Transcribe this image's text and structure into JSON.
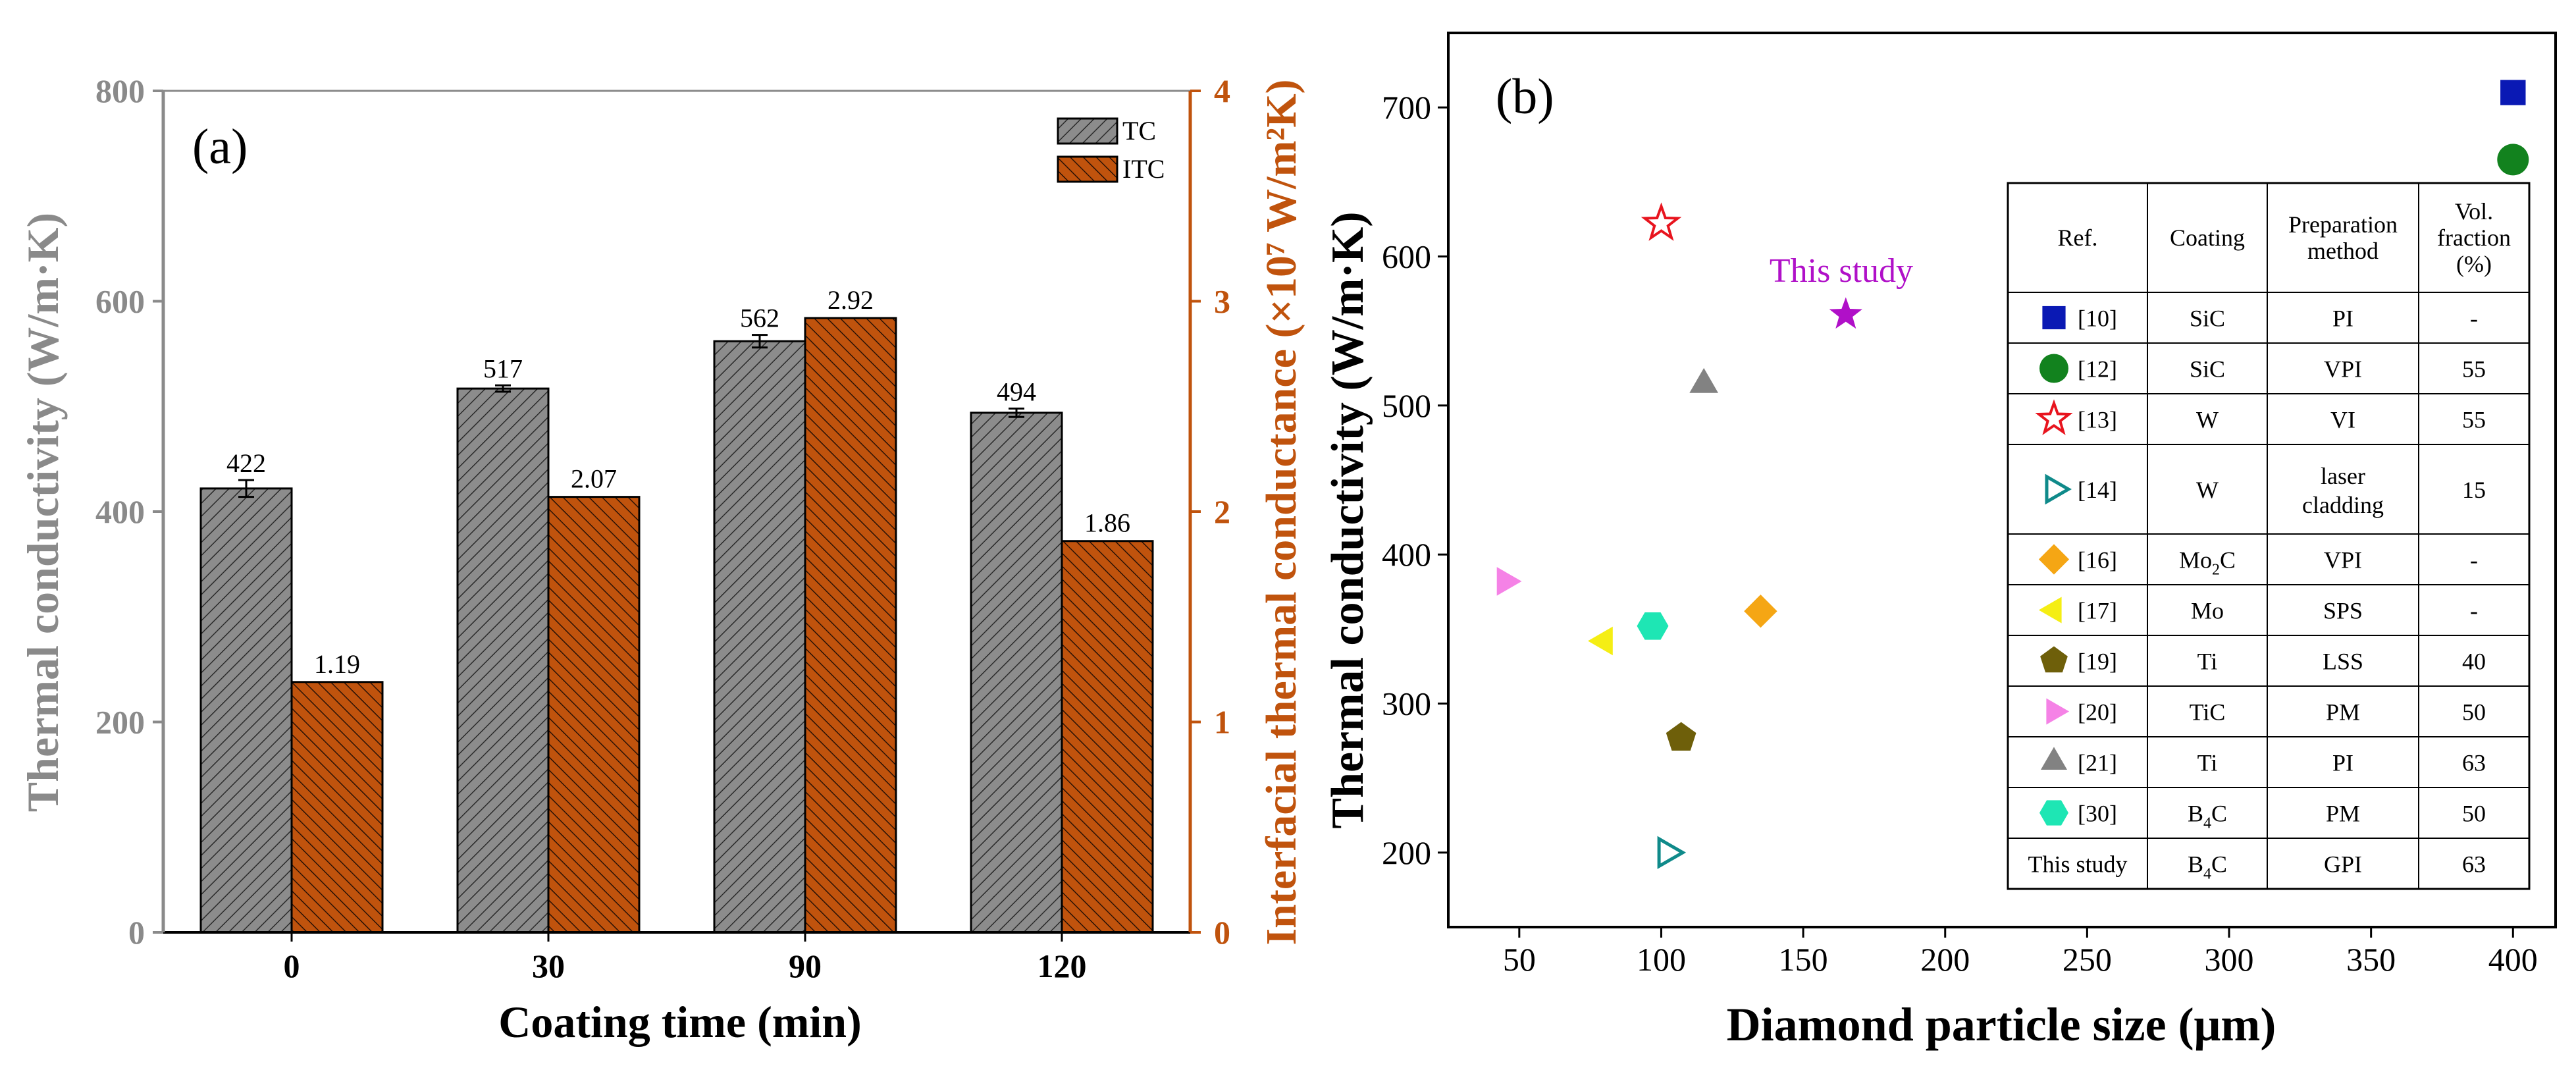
{
  "colors": {
    "tc_bar": "#8c8c8c",
    "itc_bar": "#c0530d",
    "left_axis": "#8a8a8a",
    "right_axis": "#c0530d",
    "this_study": "#b010c8"
  },
  "chart_data": [
    {
      "type": "bar",
      "panel_label": "(a)",
      "categories": [
        "0",
        "30",
        "90",
        "120"
      ],
      "xlabel": "Coating time (min)",
      "ylabel": "Thermal conductivity (W/m·K)",
      "y2label": "Interfacial thermal conductance (×10⁷ W/m²K)",
      "ylim": [
        0,
        800
      ],
      "y2lim": [
        0,
        4
      ],
      "yticks": [
        "0",
        "200",
        "400",
        "600",
        "800"
      ],
      "y2ticks": [
        "0",
        "1",
        "2",
        "3",
        "4"
      ],
      "legend_position": "top-right",
      "series": [
        {
          "name": "TC",
          "axis": "left",
          "values": [
            422,
            517,
            562,
            494
          ],
          "errors": [
            8,
            3,
            6,
            4
          ],
          "labels": [
            "422",
            "517",
            "562",
            "494"
          ]
        },
        {
          "name": "ITC",
          "axis": "right",
          "values": [
            1.19,
            2.07,
            2.92,
            1.86
          ],
          "labels": [
            "1.19",
            "2.07",
            "2.92",
            "1.86"
          ]
        }
      ]
    },
    {
      "type": "scatter",
      "panel_label": "(b)",
      "xlabel": "Diamond particle size (μm)",
      "ylabel": "Thermal conductivity (W/m·K)",
      "xlim": [
        25,
        415
      ],
      "ylim": [
        150,
        750
      ],
      "xticks": [
        "50",
        "100",
        "150",
        "200",
        "250",
        "300",
        "350",
        "400"
      ],
      "yticks": [
        "200",
        "300",
        "400",
        "500",
        "600",
        "700"
      ],
      "annotation": "This study",
      "points": [
        {
          "ref": "[10]",
          "x": 400,
          "y": 710,
          "marker": "square",
          "color": "#0a19b4"
        },
        {
          "ref": "[12]",
          "x": 400,
          "y": 665,
          "marker": "circle",
          "color": "#12821e"
        },
        {
          "ref": "[13]",
          "x": 100,
          "y": 622,
          "marker": "star-open",
          "color": "#e8141e"
        },
        {
          "ref": "[14]",
          "x": 102,
          "y": 200,
          "marker": "triangle-right-open",
          "color": "#0f8a8a"
        },
        {
          "ref": "[16]",
          "x": 135,
          "y": 362,
          "marker": "diamond",
          "color": "#f5a614"
        },
        {
          "ref": "[17]",
          "x": 80,
          "y": 342,
          "marker": "triangle-left",
          "color": "#f5ee14"
        },
        {
          "ref": "[19]",
          "x": 107,
          "y": 277,
          "marker": "pentagon",
          "color": "#6e5f0a"
        },
        {
          "ref": "[20]",
          "x": 45,
          "y": 382,
          "marker": "triangle-right",
          "color": "#f582e6"
        },
        {
          "ref": "[21]",
          "x": 115,
          "y": 514,
          "marker": "triangle-up",
          "color": "#828282"
        },
        {
          "ref": "[30]",
          "x": 97,
          "y": 352,
          "marker": "hexagon",
          "color": "#1ee6b4"
        },
        {
          "ref": "This study",
          "x": 165,
          "y": 561,
          "marker": "star",
          "color": "#b010c8"
        }
      ],
      "table": {
        "headers": [
          "Ref.",
          "Coating",
          "Preparation method",
          "Vol. fraction (%)"
        ],
        "rows": [
          {
            "ref": "[10]",
            "marker": "square",
            "color": "#0a19b4",
            "coating": "SiC",
            "coating_sub": "",
            "method": "PI",
            "fraction": "-"
          },
          {
            "ref": "[12]",
            "marker": "circle",
            "color": "#12821e",
            "coating": "SiC",
            "coating_sub": "",
            "method": "VPI",
            "fraction": "55"
          },
          {
            "ref": "[13]",
            "marker": "star-open",
            "color": "#e8141e",
            "coating": "W",
            "coating_sub": "",
            "method": "VI",
            "fraction": "55"
          },
          {
            "ref": "[14]",
            "marker": "triangle-right-open",
            "color": "#0f8a8a",
            "coating": "W",
            "coating_sub": "",
            "method": "laser cladding",
            "fraction": "15"
          },
          {
            "ref": "[16]",
            "marker": "diamond",
            "color": "#f5a614",
            "coating": "Mo",
            "coating_sub": "2",
            "coating_tail": "C",
            "method": "VPI",
            "fraction": "-"
          },
          {
            "ref": "[17]",
            "marker": "triangle-left",
            "color": "#f5ee14",
            "coating": "Mo",
            "coating_sub": "",
            "method": "SPS",
            "fraction": "-"
          },
          {
            "ref": "[19]",
            "marker": "pentagon",
            "color": "#6e5f0a",
            "coating": "Ti",
            "coating_sub": "",
            "method": "LSS",
            "fraction": "40"
          },
          {
            "ref": "[20]",
            "marker": "triangle-right",
            "color": "#f582e6",
            "coating": "TiC",
            "coating_sub": "",
            "method": "PM",
            "fraction": "50"
          },
          {
            "ref": "[21]",
            "marker": "triangle-up",
            "color": "#828282",
            "coating": "Ti",
            "coating_sub": "",
            "method": "PI",
            "fraction": "63"
          },
          {
            "ref": "[30]",
            "marker": "hexagon",
            "color": "#1ee6b4",
            "coating": "B",
            "coating_sub": "4",
            "coating_tail": "C",
            "method": "PM",
            "fraction": "50"
          },
          {
            "ref": "This study",
            "marker": "",
            "color": "",
            "coating": "B",
            "coating_sub": "4",
            "coating_tail": "C",
            "method": "GPI",
            "fraction": "63"
          }
        ]
      }
    }
  ]
}
